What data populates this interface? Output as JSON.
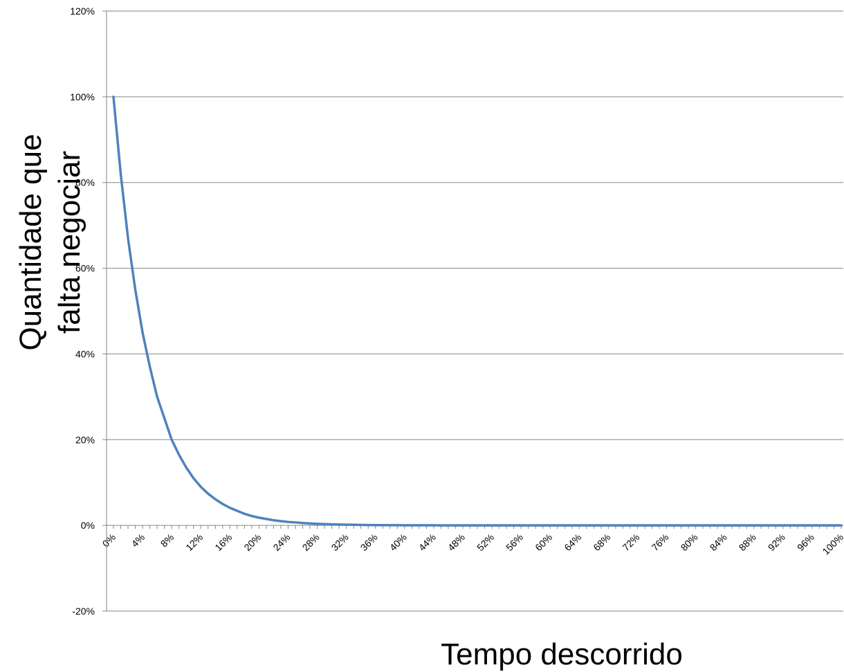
{
  "chart_data": {
    "type": "line",
    "title": "",
    "xlabel": "Tempo descorrido",
    "ylabel_lines": [
      "Quantidade que",
      "falta negociar"
    ],
    "ylim": [
      -20,
      120
    ],
    "yticks": [
      -20,
      0,
      20,
      40,
      60,
      80,
      100,
      120
    ],
    "ytick_labels": [
      "-20%",
      "0%",
      "20%",
      "40%",
      "60%",
      "80%",
      "100%",
      "120%"
    ],
    "xlim": [
      0,
      100
    ],
    "x_tick_step": 1,
    "x_label_step": 4,
    "x_label_suffix": "%",
    "grid": {
      "horizontal": true,
      "vertical": false
    },
    "legend": "none",
    "line_color": "#4f81bd",
    "series": [
      {
        "x": [
          0,
          1,
          2,
          3,
          4,
          5,
          6,
          7,
          8,
          9,
          10,
          11,
          12,
          13,
          14,
          15,
          16,
          17,
          18,
          19,
          20,
          21,
          22,
          23,
          24,
          25,
          26,
          27,
          28,
          29,
          30,
          31,
          32,
          33,
          34,
          35,
          36,
          37,
          38,
          39,
          40,
          41,
          42,
          43,
          44,
          45,
          46,
          47,
          48,
          49,
          50,
          51,
          52,
          53,
          54,
          55,
          56,
          57,
          58,
          59,
          60,
          61,
          62,
          63,
          64,
          65,
          66,
          67,
          68,
          69,
          70,
          71,
          72,
          73,
          74,
          75,
          76,
          77,
          78,
          79,
          80,
          81,
          82,
          83,
          84,
          85,
          86,
          87,
          88,
          89,
          90,
          91,
          92,
          93,
          94,
          95,
          96,
          97,
          98,
          99,
          100
        ],
        "y": [
          100,
          82,
          67,
          55,
          45,
          37,
          30,
          25,
          20,
          16.5,
          13.5,
          11,
          9,
          7.4,
          6.1,
          5,
          4.1,
          3.4,
          2.7,
          2.2,
          1.8,
          1.5,
          1.2,
          1,
          0.8,
          0.7,
          0.55,
          0.45,
          0.37,
          0.3,
          0.25,
          0.2,
          0.17,
          0.14,
          0.11,
          0.09,
          0.07,
          0.06,
          0.05,
          0.04,
          0.03,
          0.03,
          0.02,
          0.02,
          0.02,
          0.01,
          0.01,
          0.01,
          0.01,
          0.01,
          0,
          0,
          0,
          0,
          0,
          0,
          0,
          0,
          0,
          0,
          0,
          0,
          0,
          0,
          0,
          0,
          0,
          0,
          0,
          0,
          0,
          0,
          0,
          0,
          0,
          0,
          0,
          0,
          0,
          0,
          0,
          0,
          0,
          0,
          0,
          0,
          0,
          0,
          0,
          0,
          0,
          0,
          0,
          0,
          0,
          0,
          0,
          0,
          0,
          0,
          0
        ]
      }
    ]
  }
}
